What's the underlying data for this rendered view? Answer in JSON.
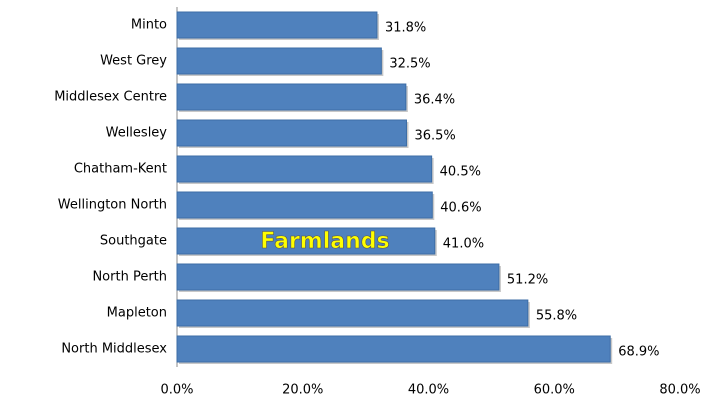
{
  "chart_data": {
    "type": "barh",
    "categories": [
      "Minto",
      "West Grey",
      "Middlesex Centre",
      "Wellesley",
      "Chatham-Kent",
      "Wellington North",
      "Southgate",
      "North Perth",
      "Mapleton",
      "North Middlesex"
    ],
    "values": [
      31.8,
      32.5,
      36.4,
      36.5,
      40.5,
      40.6,
      41.0,
      51.2,
      55.8,
      68.9
    ],
    "value_labels": [
      "31.8%",
      "32.5%",
      "36.4%",
      "36.5%",
      "40.5%",
      "40.6%",
      "41.0%",
      "51.2%",
      "55.8%",
      "68.9%"
    ],
    "color": "#4f81bd",
    "xlim": [
      0,
      80
    ],
    "xticks": [
      {
        "value": 0,
        "label": "0.0%"
      },
      {
        "value": 20,
        "label": "20.0%"
      },
      {
        "value": 40,
        "label": "40.0%"
      },
      {
        "value": 60,
        "label": "60.0%"
      },
      {
        "value": 80,
        "label": "80.0%"
      }
    ],
    "annotation": "Farmlands"
  }
}
